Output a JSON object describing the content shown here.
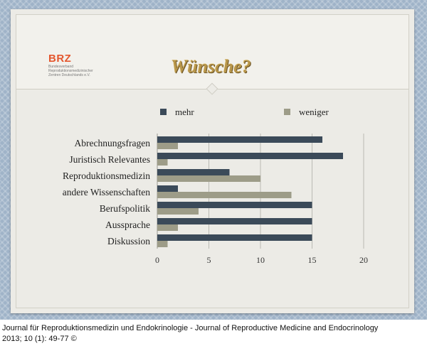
{
  "logo": {
    "name": "BRZ",
    "subtitle_lines": [
      "Bundesverband",
      "Reproduktionsmedizinischer",
      "Zentren Deutschlands e.V."
    ]
  },
  "slide": {
    "title": "Wünsche?"
  },
  "caption": {
    "line1": "Journal für Reproduktionsmedizin und Endokrinologie - Journal of Reproductive Medicine and Endocrinology",
    "line2": "2013; 10 (1): 49-77 ©"
  },
  "colors": {
    "mehr": "#3b4a59",
    "weniger": "#9d9c88"
  },
  "chart_data": {
    "type": "bar",
    "orientation": "horizontal",
    "categories": [
      "Abrechnungsfragen",
      "Juristisch Relevantes",
      "Reproduktionsmedizin",
      "andere Wissenschaften",
      "Berufspolitik",
      "Aussprache",
      "Diskussion"
    ],
    "series": [
      {
        "name": "mehr",
        "values": [
          16,
          18,
          7,
          2,
          15,
          15,
          15
        ]
      },
      {
        "name": "weniger",
        "values": [
          2,
          1,
          10,
          13,
          4,
          2,
          1
        ]
      }
    ],
    "xlim": [
      0,
      20
    ],
    "xticks": [
      0,
      5,
      10,
      15,
      20
    ],
    "grid": "vertical",
    "legend": "top"
  }
}
